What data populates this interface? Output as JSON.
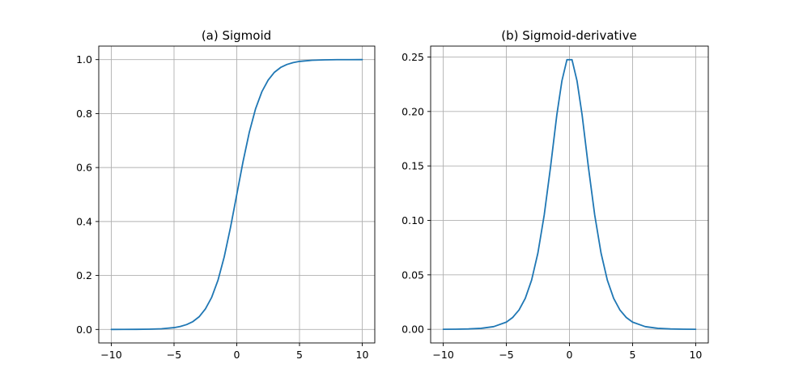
{
  "chart_data": [
    {
      "type": "line",
      "title": "(a) Sigmoid",
      "xlabel": "",
      "ylabel": "",
      "xlim": [
        -11,
        11
      ],
      "ylim": [
        -0.05,
        1.05
      ],
      "xticks": [
        -10,
        -5,
        0,
        5,
        10
      ],
      "xtick_labels": [
        "−10",
        "−5",
        "0",
        "5",
        "10"
      ],
      "yticks": [
        0.0,
        0.2,
        0.4,
        0.6,
        0.8,
        1.0
      ],
      "ytick_labels": [
        "0.0",
        "0.2",
        "0.4",
        "0.6",
        "0.8",
        "1.0"
      ],
      "grid": true,
      "series": [
        {
          "color": "#1f77b4",
          "x": [
            -10,
            -9,
            -8,
            -7,
            -6,
            -5,
            -4.5,
            -4,
            -3.5,
            -3,
            -2.5,
            -2,
            -1.5,
            -1,
            -0.5,
            0,
            0.5,
            1,
            1.5,
            2,
            2.5,
            3,
            3.5,
            4,
            4.5,
            5,
            6,
            7,
            8,
            9,
            10
          ],
          "values": [
            5e-05,
            0.00012,
            0.00034,
            0.00091,
            0.00247,
            0.0067,
            0.011,
            0.018,
            0.029,
            0.047,
            0.076,
            0.119,
            0.182,
            0.269,
            0.378,
            0.5,
            0.622,
            0.731,
            0.818,
            0.881,
            0.924,
            0.953,
            0.971,
            0.982,
            0.989,
            0.9933,
            0.9975,
            0.9991,
            0.9997,
            0.9999,
            0.99995
          ]
        }
      ]
    },
    {
      "type": "line",
      "title": "(b) Sigmoid-derivative",
      "xlabel": "",
      "ylabel": "",
      "xlim": [
        -11,
        11
      ],
      "ylim": [
        -0.0125,
        0.26
      ],
      "xticks": [
        -10,
        -5,
        0,
        5,
        10
      ],
      "xtick_labels": [
        "−10",
        "−5",
        "0",
        "5",
        "10"
      ],
      "yticks": [
        0.0,
        0.05,
        0.1,
        0.15,
        0.2,
        0.25
      ],
      "ytick_labels": [
        "0.00",
        "0.05",
        "0.10",
        "0.15",
        "0.20",
        "0.25"
      ],
      "grid": true,
      "series": [
        {
          "color": "#1f77b4",
          "x": [
            -10,
            -9,
            -8,
            -7,
            -6,
            -5,
            -4.5,
            -4,
            -3.5,
            -3,
            -2.5,
            -2,
            -1.5,
            -1,
            -0.6,
            -0.2,
            0.2,
            0.6,
            1,
            1.5,
            2,
            2.5,
            3,
            3.5,
            4,
            4.5,
            5,
            6,
            7,
            8,
            9,
            10
          ],
          "values": [
            5e-05,
            0.00012,
            0.00034,
            0.0009,
            0.0025,
            0.0066,
            0.0109,
            0.0177,
            0.0285,
            0.0452,
            0.0701,
            0.105,
            0.149,
            0.197,
            0.228,
            0.2475,
            0.2475,
            0.228,
            0.197,
            0.149,
            0.105,
            0.0701,
            0.0452,
            0.0285,
            0.0177,
            0.0109,
            0.0066,
            0.0025,
            0.0009,
            0.00034,
            0.00012,
            5e-05
          ]
        }
      ]
    }
  ]
}
